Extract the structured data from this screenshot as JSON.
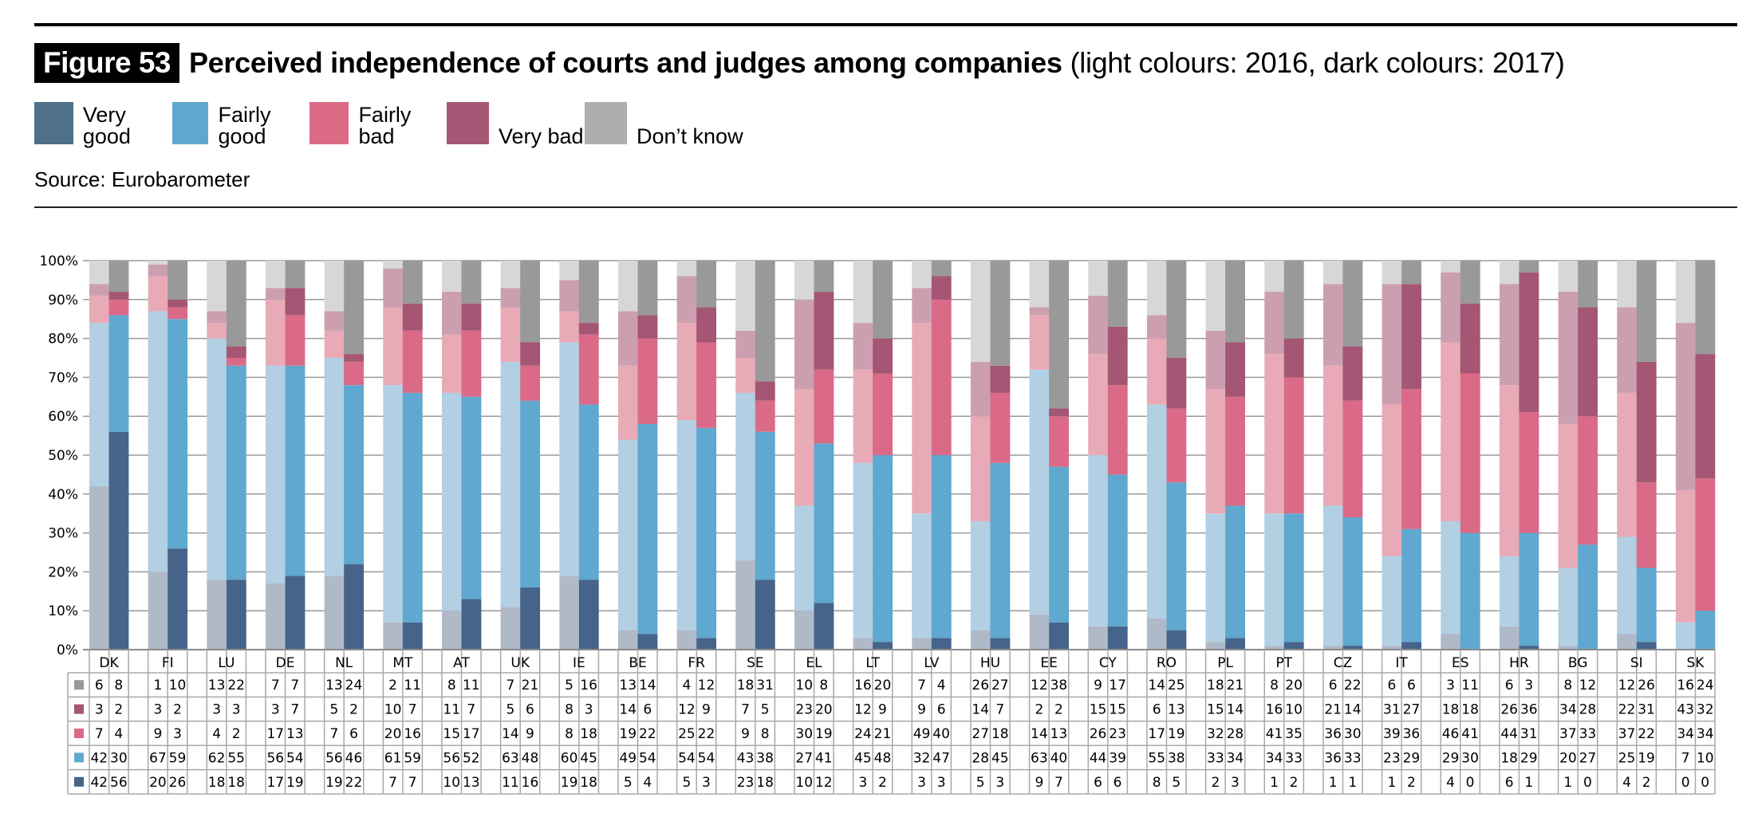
{
  "figure": {
    "number_label": "Figure 53",
    "title": "Perceived independence of courts and judges among companies",
    "subtitle": "(light colours: 2016, dark colours: 2017)",
    "source": "Source: Eurobarometer"
  },
  "legend": [
    {
      "key": "very_good",
      "label": "Very good",
      "color": "#4e7089"
    },
    {
      "key": "fairly_good",
      "label": "Fairly good",
      "color": "#5fa8cd"
    },
    {
      "key": "fairly_bad",
      "label": "Fairly bad",
      "color": "#dc6b86"
    },
    {
      "key": "very_bad",
      "label": "Very bad",
      "color": "#a65775"
    },
    {
      "key": "dont_know",
      "label": "Don’t know",
      "color": "#aeaeae"
    }
  ],
  "chart_data": {
    "type": "bar",
    "stacked": true,
    "percent": true,
    "title": "Perceived independence of courts and judges among companies (light colours: 2016, dark colours: 2017)",
    "xlabel": "",
    "ylabel": "",
    "ylim": [
      0,
      100
    ],
    "yticks": [
      "0%",
      "10%",
      "20%",
      "30%",
      "40%",
      "50%",
      "60%",
      "70%",
      "80%",
      "90%",
      "100%"
    ],
    "grid": true,
    "years": [
      "2016",
      "2017"
    ],
    "categories": [
      "DK",
      "FI",
      "LU",
      "DE",
      "NL",
      "MT",
      "AT",
      "UK",
      "IE",
      "BE",
      "FR",
      "SE",
      "EL",
      "LT",
      "LV",
      "HU",
      "EE",
      "CY",
      "RO",
      "PL",
      "PT",
      "CZ",
      "IT",
      "ES",
      "HR",
      "BG",
      "SI",
      "SK"
    ],
    "stack_order_bottom_to_top": [
      "very_good",
      "fairly_good",
      "fairly_bad",
      "very_bad",
      "dont_know"
    ],
    "table_row_order": [
      "dont_know",
      "very_bad",
      "fairly_bad",
      "fairly_good",
      "very_good"
    ],
    "colors": {
      "2016": {
        "very_good": "#b0b9c8",
        "fairly_good": "#b2cfe3",
        "fairly_bad": "#e8aab6",
        "very_bad": "#cc9fb0",
        "dont_know": "#d7d7d7"
      },
      "2017": {
        "very_good": "#46648a",
        "fairly_good": "#5fa8cf",
        "fairly_bad": "#da6a87",
        "very_bad": "#a55674",
        "dont_know": "#999999"
      }
    },
    "series": [
      {
        "name": "Don’t know",
        "key": "dont_know",
        "values_2016": [
          6,
          1,
          13,
          7,
          13,
          2,
          8,
          7,
          5,
          13,
          4,
          18,
          10,
          16,
          7,
          26,
          12,
          9,
          14,
          18,
          8,
          6,
          6,
          3,
          6,
          8,
          12,
          16
        ],
        "values_2017": [
          8,
          10,
          22,
          7,
          24,
          11,
          11,
          21,
          16,
          14,
          12,
          31,
          8,
          20,
          4,
          27,
          38,
          17,
          25,
          21,
          20,
          22,
          6,
          11,
          3,
          12,
          26,
          24
        ]
      },
      {
        "name": "Very bad",
        "key": "very_bad",
        "values_2016": [
          3,
          3,
          3,
          3,
          5,
          10,
          11,
          5,
          8,
          14,
          12,
          7,
          23,
          12,
          9,
          14,
          2,
          15,
          6,
          15,
          16,
          21,
          31,
          18,
          26,
          34,
          22,
          43
        ],
        "values_2017": [
          2,
          2,
          3,
          7,
          2,
          7,
          7,
          6,
          3,
          6,
          9,
          5,
          20,
          9,
          6,
          7,
          2,
          15,
          13,
          14,
          10,
          14,
          27,
          18,
          36,
          28,
          31,
          32
        ]
      },
      {
        "name": "Fairly bad",
        "key": "fairly_bad",
        "values_2016": [
          7,
          9,
          4,
          17,
          7,
          20,
          15,
          14,
          8,
          19,
          25,
          9,
          30,
          24,
          49,
          27,
          14,
          26,
          17,
          32,
          41,
          36,
          39,
          46,
          44,
          37,
          37,
          34
        ],
        "values_2017": [
          4,
          3,
          2,
          13,
          6,
          16,
          17,
          9,
          18,
          22,
          22,
          8,
          19,
          21,
          40,
          18,
          13,
          23,
          19,
          28,
          35,
          30,
          36,
          41,
          31,
          33,
          22,
          34
        ]
      },
      {
        "name": "Fairly good",
        "key": "fairly_good",
        "values_2016": [
          42,
          67,
          62,
          56,
          56,
          61,
          56,
          63,
          60,
          49,
          54,
          43,
          27,
          45,
          32,
          28,
          63,
          44,
          55,
          33,
          34,
          36,
          23,
          29,
          18,
          20,
          25,
          7
        ],
        "values_2017": [
          30,
          59,
          55,
          54,
          46,
          59,
          52,
          48,
          45,
          54,
          54,
          38,
          41,
          48,
          47,
          45,
          40,
          39,
          38,
          34,
          33,
          33,
          29,
          30,
          29,
          27,
          19,
          10
        ]
      },
      {
        "name": "Very good",
        "key": "very_good",
        "values_2016": [
          42,
          20,
          18,
          17,
          19,
          7,
          10,
          11,
          19,
          5,
          5,
          23,
          10,
          3,
          3,
          5,
          9,
          6,
          8,
          2,
          1,
          1,
          1,
          4,
          6,
          1,
          4,
          0
        ],
        "values_2017": [
          56,
          26,
          18,
          19,
          22,
          7,
          13,
          16,
          18,
          4,
          3,
          18,
          12,
          2,
          3,
          3,
          7,
          6,
          5,
          3,
          2,
          1,
          2,
          0,
          1,
          0,
          2,
          0
        ]
      }
    ]
  }
}
